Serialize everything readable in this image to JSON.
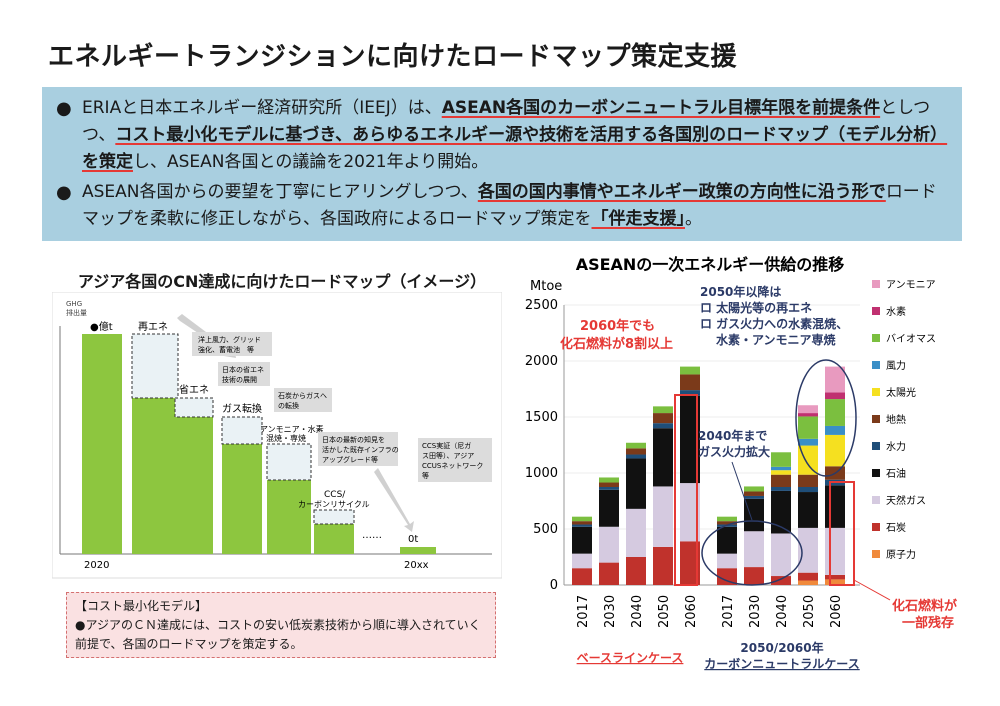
{
  "title": "エネルギートランジションに向けたロードマップ策定支援",
  "summary": {
    "bullet1": {
      "t1": "ERIAと日本エネルギー経済研究所（IEEJ）は、",
      "u1": "ASEAN各国のカーボンニュートラル目標年限を前提条件",
      "t2": "としつつ、",
      "u2": "コスト最小化モデルに基づき、あらゆるエネルギー源や技術を活用する各国別のロードマップ（モデル分析）を策定",
      "t3": "し、ASEAN各国との議論を2021年より開始。"
    },
    "bullet2": {
      "t1": "ASEAN各国からの要望を丁寧にヒアリングしつつ、",
      "u1": "各国の国内事情やエネルギー政策の方向性に沿う形で",
      "t2": "ロードマップを柔軟に修正しながら、各国政府によるロードマップ策定を",
      "u2": "「伴走支援」",
      "t3": "。"
    }
  },
  "left_panel": {
    "title": "アジア各国のCN達成に向けたロードマップ（イメージ）",
    "ylabel_1": "GHG",
    "ylabel_2": "排出量",
    "top_label": "●億t",
    "labels": {
      "renewable": "再エネ",
      "saving": "省エネ",
      "gas_switch": "ガス転換",
      "ammonia_1": "アンモニア・水素",
      "ammonia_2": "混焼・専焼",
      "ccs_1": "CCS/",
      "ccs_2": "カーボンリサイクル",
      "dots": "……",
      "zero": "0t",
      "x_start": "2020",
      "x_end": "20xx"
    },
    "callouts": {
      "c1_1": "洋上風力、グリッド",
      "c1_2": "強化、蓄電池　等",
      "c2_1": "日本の省エネ",
      "c2_2": "技術の展開",
      "c3_1": "石炭からガスへ",
      "c3_2": "の転換",
      "c4_1": "日本の最新の知見を",
      "c4_2": "活かした既存インフラの",
      "c4_3": "アップグレード等",
      "c5_1": "CCS実証（尼ガ",
      "c5_2": "ス田等）、アジア",
      "c5_3": "CCUSネットワーク",
      "c5_4": "等"
    },
    "cost_box": {
      "head": "【コスト最小化モデル】",
      "body": "●アジアのＣＮ達成には、コストの安い低炭素技術から順に導入されていく前提で、各国のロードマップを策定する。"
    }
  },
  "right_panel": {
    "annotations": {
      "fossil_1": "2060年でも",
      "fossil_2": "化石燃料が8割以上",
      "gas_1": "2040年まで",
      "gas_2": "ガス火力拡大",
      "post_1": "2050年以降は",
      "post_2": "ロ 太陽光等の再エネ",
      "post_3": "ロ ガス火力への水素混焼、",
      "post_4": "水素・アンモニア専焼",
      "remain_1": "化石燃料が",
      "remain_2": "一部残存"
    },
    "group_labels": {
      "baseline": "ベースラインケース",
      "cn_1": "2050/2060年",
      "cn_2": "カーボンニュートラルケース"
    }
  },
  "chart_data": {
    "type": "bar",
    "stacked": true,
    "title": "ASEANの一次エネルギー供給の推移",
    "ylabel": "Mtoe",
    "ylim": [
      0,
      2500
    ],
    "yticks": [
      0,
      500,
      1000,
      1500,
      2000,
      2500
    ],
    "groups": [
      {
        "name": "ベースラインケース",
        "categories": [
          "2017",
          "2030",
          "2040",
          "2050",
          "2060"
        ]
      },
      {
        "name": "カーボンニュートラルケース",
        "categories": [
          "2017",
          "2030",
          "2040",
          "2050",
          "2060"
        ]
      }
    ],
    "legend_position": "right",
    "series": [
      {
        "name": "原子力",
        "color": "#f08a3c",
        "values": [
          0,
          0,
          0,
          0,
          0,
          0,
          0,
          0,
          40,
          50
        ]
      },
      {
        "name": "石炭",
        "color": "#c0322c",
        "values": [
          150,
          200,
          250,
          340,
          390,
          150,
          160,
          80,
          70,
          40
        ]
      },
      {
        "name": "天然ガス",
        "color": "#d5cae0",
        "values": [
          130,
          320,
          430,
          540,
          520,
          130,
          320,
          380,
          400,
          420
        ]
      },
      {
        "name": "石油",
        "color": "#111111",
        "values": [
          240,
          330,
          450,
          520,
          780,
          240,
          290,
          380,
          320,
          380
        ]
      },
      {
        "name": "水力",
        "color": "#1f4e79",
        "values": [
          20,
          25,
          35,
          45,
          50,
          20,
          25,
          35,
          45,
          50
        ]
      },
      {
        "name": "地熱",
        "color": "#7b3a1a",
        "values": [
          30,
          40,
          55,
          90,
          140,
          30,
          40,
          110,
          110,
          120
        ]
      },
      {
        "name": "太陽光",
        "color": "#f5e020",
        "values": [
          0,
          0,
          0,
          0,
          0,
          0,
          0,
          40,
          260,
          280
        ]
      },
      {
        "name": "風力",
        "color": "#3a8fc7",
        "values": [
          0,
          0,
          0,
          0,
          0,
          0,
          0,
          30,
          60,
          80
        ]
      },
      {
        "name": "バイオマス",
        "color": "#7bbf3f",
        "values": [
          40,
          45,
          50,
          60,
          70,
          40,
          45,
          130,
          200,
          240
        ]
      },
      {
        "name": "水素",
        "color": "#c03070",
        "values": [
          0,
          0,
          0,
          0,
          0,
          0,
          0,
          0,
          30,
          60
        ]
      },
      {
        "name": "アンモニア",
        "color": "#e89abf",
        "values": [
          0,
          0,
          0,
          0,
          0,
          0,
          0,
          0,
          70,
          230
        ]
      }
    ]
  }
}
